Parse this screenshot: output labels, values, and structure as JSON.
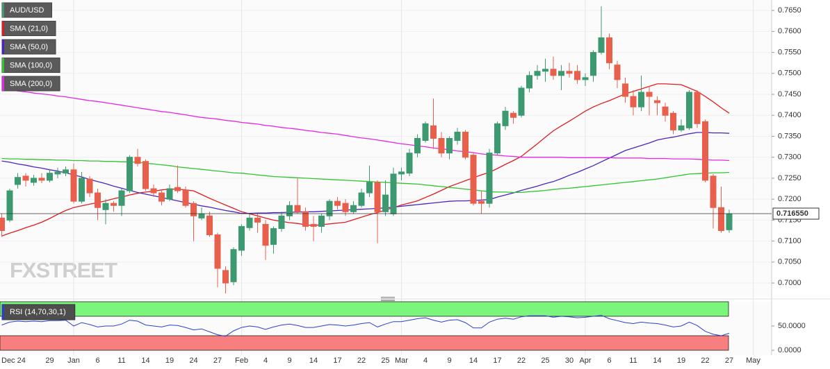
{
  "chart_data": [
    {
      "type": "candlestick",
      "title": "AUD/USD",
      "watermark": "FXSTREET",
      "categories": [
        null,
        null,
        "Dec 24",
        null,
        null,
        null,
        "29",
        null,
        null,
        "Jan",
        null,
        null,
        "6",
        null,
        null,
        "11",
        null,
        null,
        "14",
        null,
        null,
        "19",
        null,
        null,
        "24",
        null,
        null,
        "27",
        null,
        null,
        "Feb",
        null,
        null,
        "4",
        null,
        null,
        "9",
        null,
        null,
        "14",
        null,
        null,
        "17",
        null,
        null,
        "22",
        null,
        null,
        "25",
        null,
        "Mar",
        null,
        null,
        "4",
        null,
        null,
        "9",
        null,
        null,
        "14",
        null,
        null,
        "17",
        null,
        null,
        "22",
        null,
        null,
        "25",
        null,
        null,
        "30",
        null,
        "Apr",
        null,
        null,
        "6",
        null,
        null,
        "11",
        null,
        null,
        "14",
        null,
        null,
        "19",
        null,
        null,
        "22",
        null,
        null,
        "27",
        null,
        null,
        "May"
      ],
      "open": [
        0.7155,
        0.715,
        0.7235,
        0.7255,
        0.724,
        0.725,
        0.7245,
        0.726,
        0.7262,
        0.727,
        0.7195,
        0.7248,
        0.7215,
        0.7175,
        0.719,
        0.7185,
        0.722,
        0.73,
        0.729,
        0.7225,
        0.7215,
        0.72,
        0.7228,
        0.7222,
        0.719,
        0.7155,
        0.716,
        0.7115,
        0.703,
        0.7003,
        0.7078,
        0.7132,
        0.7155,
        0.714,
        0.7092,
        0.713,
        0.716,
        0.7185,
        0.717,
        0.714,
        0.7135,
        0.716,
        0.7195,
        0.719,
        0.717,
        0.7185,
        0.7215,
        0.724,
        0.717,
        0.7165,
        0.726,
        0.7262,
        0.731,
        0.734,
        0.7375,
        0.7345,
        0.731,
        0.734,
        0.736,
        0.7305,
        0.7195,
        0.719,
        0.731,
        0.7375,
        0.7405,
        0.74,
        0.7465,
        0.7495,
        0.7505,
        0.751,
        0.7495,
        0.7505,
        0.7505,
        0.7485,
        0.7495,
        0.755,
        0.7585,
        0.752,
        0.7475,
        0.7445,
        0.742,
        0.7455,
        0.7435,
        0.742,
        0.7405,
        0.7365,
        0.737,
        0.7455,
        0.7385,
        0.7255,
        0.718,
        0.7127,
        null,
        null,
        null
      ],
      "high": [
        0.7165,
        0.7225,
        0.7262,
        0.7262,
        0.7258,
        0.7262,
        0.7272,
        0.7275,
        0.7278,
        0.7285,
        0.7265,
        0.7255,
        0.7225,
        0.72,
        0.7195,
        0.7225,
        0.7305,
        0.732,
        0.7295,
        0.7235,
        0.722,
        0.7235,
        0.728,
        0.723,
        0.7195,
        0.718,
        0.717,
        0.712,
        0.704,
        0.7085,
        0.714,
        0.7165,
        0.7165,
        0.715,
        0.7135,
        0.717,
        0.7195,
        0.725,
        0.718,
        0.716,
        0.7165,
        0.72,
        0.7205,
        0.72,
        0.7195,
        0.7225,
        0.728,
        0.7245,
        0.7245,
        0.7275,
        0.7275,
        0.732,
        0.7355,
        0.7385,
        0.744,
        0.736,
        0.735,
        0.737,
        0.7365,
        0.731,
        0.722,
        0.732,
        0.7385,
        0.742,
        0.741,
        0.747,
        0.7505,
        0.752,
        0.7535,
        0.754,
        0.752,
        0.7525,
        0.752,
        0.75,
        0.7555,
        0.766,
        0.7595,
        0.753,
        0.749,
        0.746,
        0.7495,
        0.747,
        0.7445,
        0.743,
        0.741,
        0.739,
        0.746,
        0.746,
        0.739,
        0.726,
        0.723,
        0.7175,
        null,
        null,
        null
      ],
      "low": [
        0.711,
        0.7145,
        0.7225,
        0.723,
        0.7232,
        0.7238,
        0.724,
        0.725,
        0.7255,
        0.719,
        0.719,
        0.7205,
        0.715,
        0.714,
        0.717,
        0.716,
        0.7215,
        0.7278,
        0.722,
        0.7205,
        0.7185,
        0.7195,
        0.7215,
        0.718,
        0.71,
        0.715,
        0.711,
        0.699,
        0.6975,
        0.6995,
        0.7065,
        0.7125,
        0.712,
        0.7055,
        0.707,
        0.7122,
        0.715,
        0.7165,
        0.7125,
        0.71,
        0.712,
        0.715,
        0.7175,
        0.716,
        0.7165,
        0.718,
        0.7205,
        0.7095,
        0.716,
        0.716,
        0.7245,
        0.7255,
        0.73,
        0.7335,
        0.732,
        0.73,
        0.7295,
        0.733,
        0.7295,
        0.7185,
        0.7165,
        0.718,
        0.7305,
        0.7365,
        0.738,
        0.7395,
        0.7455,
        0.7485,
        0.748,
        0.7485,
        0.746,
        0.749,
        0.7475,
        0.747,
        0.748,
        0.7545,
        0.751,
        0.7465,
        0.743,
        0.74,
        0.741,
        0.74,
        0.74,
        0.7385,
        0.7355,
        0.736,
        0.7365,
        0.737,
        0.724,
        0.713,
        0.712,
        0.712,
        null,
        null,
        null
      ],
      "close": [
        0.7125,
        0.722,
        0.7252,
        0.7245,
        0.725,
        0.7245,
        0.7262,
        0.7265,
        0.727,
        0.7195,
        0.725,
        0.7215,
        0.718,
        0.719,
        0.7185,
        0.722,
        0.73,
        0.7285,
        0.7225,
        0.7215,
        0.7195,
        0.7225,
        0.722,
        0.7185,
        0.716,
        0.7165,
        0.7115,
        0.7035,
        0.7,
        0.708,
        0.7135,
        0.7155,
        0.7145,
        0.709,
        0.713,
        0.716,
        0.7185,
        0.717,
        0.7135,
        0.7135,
        0.716,
        0.7195,
        0.7185,
        0.717,
        0.7185,
        0.7215,
        0.724,
        0.717,
        0.721,
        0.726,
        0.7265,
        0.731,
        0.7345,
        0.738,
        0.7345,
        0.731,
        0.7345,
        0.736,
        0.73,
        0.719,
        0.719,
        0.731,
        0.738,
        0.741,
        0.7395,
        0.7465,
        0.7495,
        0.7505,
        0.751,
        0.7495,
        0.7505,
        0.75,
        0.7485,
        0.749,
        0.755,
        0.7585,
        0.7525,
        0.7485,
        0.7445,
        0.742,
        0.7455,
        0.7445,
        0.743,
        0.74,
        0.7365,
        0.7375,
        0.7455,
        0.738,
        0.7245,
        0.718,
        0.7125,
        0.7165,
        null,
        null,
        null
      ],
      "up_color": "#3d9970",
      "down_color": "#e8604c",
      "series": [
        {
          "name": "SMA (21,0)",
          "color": "#e31a1c",
          "values": [
            0.7112,
            0.7119,
            0.7125,
            0.7132,
            0.7138,
            0.7145,
            0.7154,
            0.7164,
            0.7173,
            0.718,
            0.7184,
            0.7188,
            0.7192,
            0.7196,
            0.7201,
            0.7205,
            0.721,
            0.7214,
            0.7217,
            0.7219,
            0.7222,
            0.7224,
            0.7224,
            0.7222,
            0.722,
            0.7211,
            0.7202,
            0.7194,
            0.7186,
            0.7178,
            0.717,
            0.7165,
            0.716,
            0.7155,
            0.715,
            0.7147,
            0.7144,
            0.7142,
            0.7139,
            0.7137,
            0.7139,
            0.7141,
            0.7143,
            0.7145,
            0.7151,
            0.7157,
            0.7163,
            0.7168,
            0.7174,
            0.718,
            0.7186,
            0.7191,
            0.7196,
            0.7204,
            0.7212,
            0.7221,
            0.723,
            0.7237,
            0.7244,
            0.7251,
            0.7258,
            0.7264,
            0.7273,
            0.7283,
            0.7292,
            0.7302,
            0.7317,
            0.7332,
            0.7348,
            0.7363,
            0.7375,
            0.7386,
            0.7398,
            0.741,
            0.742,
            0.7428,
            0.7435,
            0.7443,
            0.7451,
            0.7457,
            0.7463,
            0.7469,
            0.7475,
            0.7475,
            0.7474,
            0.7473,
            0.7465,
            0.7457,
            0.7445,
            0.7432,
            0.7418,
            0.7405,
            null,
            null,
            null
          ]
        },
        {
          "name": "SMA (50,0)",
          "color": "#4b23c0",
          "values": [
            0.7291,
            0.7288,
            0.7284,
            0.7281,
            0.7277,
            0.7274,
            0.727,
            0.7267,
            0.7263,
            0.7258,
            0.7253,
            0.7247,
            0.7242,
            0.7237,
            0.7231,
            0.7226,
            0.7221,
            0.7216,
            0.7212,
            0.7208,
            0.7204,
            0.72,
            0.7196,
            0.7192,
            0.7188,
            0.7184,
            0.7181,
            0.7177,
            0.7173,
            0.717,
            0.7166,
            0.7166,
            0.7167,
            0.7167,
            0.7168,
            0.7168,
            0.7169,
            0.7169,
            0.717,
            0.717,
            0.7171,
            0.7172,
            0.7173,
            0.7174,
            0.7175,
            0.7176,
            0.7177,
            0.7178,
            0.7179,
            0.7181,
            0.7183,
            0.7185,
            0.7187,
            0.7189,
            0.7191,
            0.7193,
            0.7195,
            0.7196,
            0.7196,
            0.7197,
            0.7198,
            0.7199,
            0.7205,
            0.721,
            0.7215,
            0.7221,
            0.7226,
            0.7231,
            0.7237,
            0.7242,
            0.7249,
            0.7257,
            0.7264,
            0.7272,
            0.728,
            0.7289,
            0.7298,
            0.7307,
            0.7316,
            0.7322,
            0.7328,
            0.7334,
            0.7341,
            0.7345,
            0.7348,
            0.7352,
            0.7356,
            0.7359,
            0.7359,
            0.7358,
            0.7358,
            0.7357,
            null,
            null,
            null
          ]
        },
        {
          "name": "SMA (100,0)",
          "color": "#2ec52e",
          "values": [
            0.7297,
            0.7296,
            0.7296,
            0.7295,
            0.7295,
            0.7294,
            0.7294,
            0.7293,
            0.7293,
            0.7292,
            0.7292,
            0.7291,
            0.7291,
            0.729,
            0.729,
            0.7289,
            0.7289,
            0.7288,
            0.7286,
            0.7284,
            0.7282,
            0.728,
            0.7277,
            0.7275,
            0.7273,
            0.7271,
            0.7269,
            0.7267,
            0.7265,
            0.7263,
            0.7262,
            0.726,
            0.7258,
            0.7256,
            0.7254,
            0.7253,
            0.7252,
            0.7251,
            0.725,
            0.7249,
            0.7248,
            0.7247,
            0.7246,
            0.7245,
            0.7244,
            0.7243,
            0.7242,
            0.7241,
            0.724,
            0.7239,
            0.7238,
            0.7237,
            0.7236,
            0.7234,
            0.7232,
            0.723,
            0.7228,
            0.7226,
            0.7224,
            0.7222,
            0.722,
            0.7218,
            0.7217,
            0.7217,
            0.7216,
            0.7216,
            0.7218,
            0.7219,
            0.7221,
            0.7223,
            0.7225,
            0.7226,
            0.7228,
            0.723,
            0.7232,
            0.7234,
            0.7236,
            0.7238,
            0.724,
            0.7242,
            0.7244,
            0.7246,
            0.7248,
            0.7251,
            0.7254,
            0.7257,
            0.726,
            0.7261,
            0.7262,
            0.7263,
            0.7263,
            0.7264,
            null,
            null,
            null
          ]
        },
        {
          "name": "SMA (200,0)",
          "color": "#e526e5",
          "values": [
            0.7463,
            0.7461,
            0.7458,
            0.7456,
            0.7453,
            0.7451,
            0.7449,
            0.7446,
            0.7444,
            0.7441,
            0.7438,
            0.7435,
            0.7433,
            0.743,
            0.7427,
            0.7424,
            0.7421,
            0.7418,
            0.7415,
            0.7412,
            0.7409,
            0.7407,
            0.7404,
            0.7401,
            0.7398,
            0.7395,
            0.7393,
            0.7391,
            0.7388,
            0.7386,
            0.7383,
            0.7381,
            0.7379,
            0.7376,
            0.7374,
            0.7371,
            0.7369,
            0.7367,
            0.7364,
            0.7362,
            0.7359,
            0.7357,
            0.7355,
            0.7352,
            0.7349,
            0.7346,
            0.7344,
            0.7341,
            0.7338,
            0.7335,
            0.7332,
            0.733,
            0.7327,
            0.7325,
            0.7322,
            0.732,
            0.7318,
            0.7315,
            0.7313,
            0.7311,
            0.7308,
            0.7306,
            0.7305,
            0.7303,
            0.7302,
            0.73,
            0.73,
            0.73,
            0.73,
            0.73,
            0.73,
            0.7299,
            0.7299,
            0.7299,
            0.7299,
            0.7299,
            0.7299,
            0.7298,
            0.7298,
            0.7298,
            0.7298,
            0.7297,
            0.7297,
            0.7297,
            0.7296,
            0.7296,
            0.7296,
            0.7295,
            0.7294,
            0.7293,
            0.7293,
            0.7292,
            null,
            null,
            null
          ]
        }
      ],
      "ylim": [
        0.6967,
        0.7675
      ],
      "yticks": [
        {
          "value": 0.7,
          "label": "0.7000"
        },
        {
          "value": 0.705,
          "label": "0.7050"
        },
        {
          "value": 0.71,
          "label": "0.7100"
        },
        {
          "value": 0.715,
          "label": "0.7150"
        },
        {
          "value": 0.72,
          "label": "0.7200"
        },
        {
          "value": 0.725,
          "label": "0.7250"
        },
        {
          "value": 0.73,
          "label": "0.7300"
        },
        {
          "value": 0.735,
          "label": "0.7350"
        },
        {
          "value": 0.74,
          "label": "0.7400"
        },
        {
          "value": 0.745,
          "label": "0.7450"
        },
        {
          "value": 0.75,
          "label": "0.7500"
        },
        {
          "value": 0.755,
          "label": "0.7550"
        },
        {
          "value": 0.76,
          "label": "0.7600"
        },
        {
          "value": 0.765,
          "label": "0.7650"
        }
      ],
      "last_price": {
        "value": 0.71655,
        "label": "0.716550"
      }
    },
    {
      "type": "line",
      "title": "RSI (14,70,30,1)",
      "color": "#2a3fd0",
      "values": [
        52,
        58,
        60,
        59,
        60,
        59,
        61,
        61,
        62,
        50,
        57,
        53,
        48,
        50,
        50,
        54,
        62,
        60,
        52,
        50,
        48,
        52,
        51,
        47,
        42,
        44,
        38,
        32,
        29,
        40,
        47,
        50,
        48,
        43,
        48,
        52,
        54,
        51,
        47,
        47,
        50,
        53,
        52,
        50,
        52,
        55,
        57,
        48,
        54,
        59,
        59,
        62,
        65,
        67,
        62,
        58,
        62,
        63,
        57,
        46,
        46,
        58,
        64,
        66,
        64,
        69,
        71,
        71,
        71,
        68,
        70,
        69,
        67,
        68,
        70,
        72,
        65,
        61,
        57,
        55,
        58,
        56,
        55,
        52,
        48,
        50,
        58,
        51,
        39,
        33,
        30,
        35,
        null,
        null,
        null
      ],
      "ylim": [
        -10,
        100
      ],
      "yticks": [
        {
          "value": 0,
          "label": "0.0000"
        },
        {
          "value": 50,
          "label": "50.0000"
        }
      ],
      "bands": [
        {
          "from": 70,
          "to": 100,
          "color": "#7cf57c"
        },
        {
          "from": 0,
          "to": 30,
          "color": "#f77f7f"
        }
      ]
    }
  ]
}
